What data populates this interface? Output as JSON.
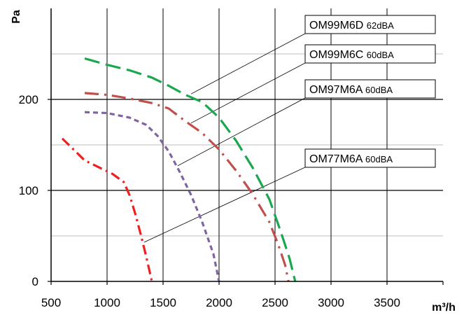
{
  "chart_data": {
    "type": "line",
    "xlabel": "m³/h",
    "ylabel": "Pa",
    "xlim": [
      500,
      4000
    ],
    "ylim": [
      0,
      300
    ],
    "x_ticks": [
      500,
      1000,
      1500,
      2000,
      2500,
      3000,
      3500
    ],
    "y_ticks": [
      0,
      100,
      200
    ],
    "grid": {
      "major_vertical": [
        1000,
        1500,
        2000,
        2500,
        3000,
        3500
      ],
      "major_horizontal": [
        100,
        200
      ],
      "minor_horizontal": [
        50,
        150,
        250
      ]
    },
    "series": [
      {
        "name": "OM99M6D",
        "noise": "62dBA",
        "color": "#19a84e",
        "dash": "long-dash",
        "points": [
          [
            800,
            245
          ],
          [
            1000,
            238
          ],
          [
            1200,
            232
          ],
          [
            1400,
            224
          ],
          [
            1550,
            215
          ],
          [
            1700,
            205
          ],
          [
            1850,
            197
          ],
          [
            2000,
            180
          ],
          [
            2150,
            155
          ],
          [
            2300,
            125
          ],
          [
            2450,
            90
          ],
          [
            2550,
            55
          ],
          [
            2630,
            25
          ],
          [
            2680,
            0
          ]
        ]
      },
      {
        "name": "OM99M6C",
        "noise": "60dBA",
        "color": "#c0504d",
        "dash": "long-dash-dot",
        "points": [
          [
            800,
            207
          ],
          [
            1000,
            205
          ],
          [
            1200,
            201
          ],
          [
            1400,
            196
          ],
          [
            1550,
            190
          ],
          [
            1700,
            176
          ],
          [
            1850,
            163
          ],
          [
            2000,
            145
          ],
          [
            2150,
            122
          ],
          [
            2300,
            96
          ],
          [
            2450,
            65
          ],
          [
            2530,
            40
          ],
          [
            2590,
            18
          ],
          [
            2620,
            0
          ]
        ]
      },
      {
        "name": "OM97M6A",
        "noise": "60dBA",
        "color": "#8064a2",
        "dash": "short-dash",
        "points": [
          [
            800,
            186
          ],
          [
            1000,
            185
          ],
          [
            1200,
            180
          ],
          [
            1350,
            172
          ],
          [
            1450,
            160
          ],
          [
            1550,
            143
          ],
          [
            1650,
            120
          ],
          [
            1750,
            95
          ],
          [
            1850,
            65
          ],
          [
            1950,
            30
          ],
          [
            2000,
            0
          ]
        ]
      },
      {
        "name": "OM77M6A",
        "noise": "60dBA",
        "color": "#ee2020",
        "dash": "dash-dot",
        "points": [
          [
            600,
            157
          ],
          [
            700,
            145
          ],
          [
            800,
            133
          ],
          [
            950,
            124
          ],
          [
            1050,
            118
          ],
          [
            1150,
            109
          ],
          [
            1200,
            95
          ],
          [
            1250,
            75
          ],
          [
            1300,
            52
          ],
          [
            1350,
            27
          ],
          [
            1400,
            0
          ]
        ]
      }
    ],
    "callouts": [
      {
        "series": 0,
        "label": "OM99M6D",
        "noise": "62dBA",
        "anchor": [
          1750,
          206
        ]
      },
      {
        "series": 1,
        "label": "OM99M6C",
        "noise": "60dBA",
        "anchor": [
          1750,
          174
        ]
      },
      {
        "series": 2,
        "label": "OM97M6A",
        "noise": "60dBA",
        "anchor": [
          1630,
          127
        ]
      },
      {
        "series": 3,
        "label": "OM77M6A",
        "noise": "60dBA",
        "anchor": [
          1330,
          43
        ]
      }
    ]
  }
}
